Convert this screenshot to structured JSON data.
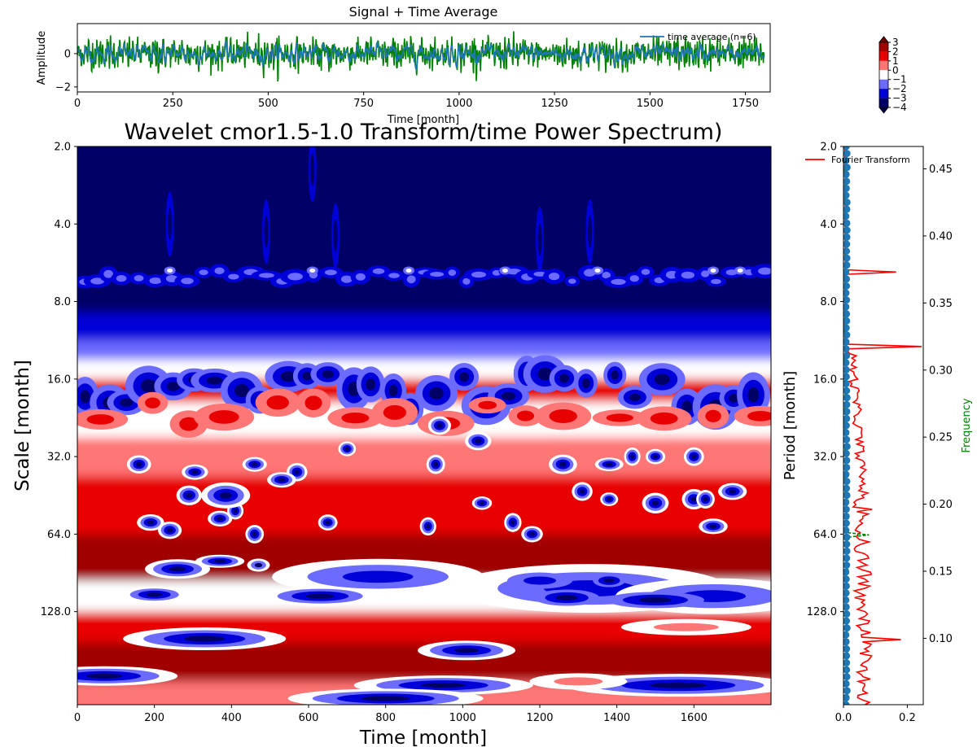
{
  "chart_data": [
    {
      "id": "signal",
      "type": "line",
      "title": "Signal + Time Average",
      "xlabel": "Time [month]",
      "ylabel": "Amplitude",
      "xlim": [
        0,
        1815
      ],
      "ylim": [
        -2.3,
        1.8
      ],
      "xticks": [
        "0",
        "250",
        "500",
        "750",
        "1000",
        "1250",
        "1500",
        "1750"
      ],
      "yticks": [
        "−2",
        "0"
      ],
      "xtick_values": [
        0,
        250,
        500,
        750,
        1000,
        1250,
        1500,
        1750
      ],
      "ytick_values": [
        -2,
        0
      ],
      "legend": {
        "placement": "upper right",
        "entries": [
          "time average (n=6)"
        ]
      },
      "series": [
        {
          "name": "",
          "color": "#008000",
          "style": "solid"
        },
        {
          "name": "time average (n=6)",
          "color": "#1f77b4",
          "style": "solid"
        }
      ],
      "n_points": 1800
    },
    {
      "id": "wavelet",
      "type": "heatmap",
      "title": "Wavelet cmor1.5-1.0 Transform/time Power Spectrum)",
      "xlabel": "Time [month]",
      "ylabel": "Scale [month]",
      "xlim": [
        0,
        1800
      ],
      "ylim_log2": [
        1,
        8.2
      ],
      "xticks": [
        "0",
        "200",
        "400",
        "600",
        "800",
        "1000",
        "1200",
        "1400",
        "1600"
      ],
      "xtick_values": [
        0,
        200,
        400,
        600,
        800,
        1000,
        1200,
        1400,
        1600
      ],
      "yticks": [
        "2.0",
        "4.0",
        "8.0",
        "16.0",
        "32.0",
        "64.0",
        "128.0"
      ],
      "ytick_values": [
        2,
        4,
        8,
        16,
        32,
        64,
        128
      ],
      "colormap": "seismic",
      "levels": [
        -4,
        -3,
        -2,
        -1,
        0,
        1,
        2,
        3
      ]
    },
    {
      "id": "colorbar",
      "type": "colorbar",
      "ticks": [
        "3",
        "2",
        "1",
        "0",
        "−1",
        "−2",
        "−3",
        "−4"
      ],
      "colors": [
        "#000066",
        "#0000d8",
        "#6b6bff",
        "#ffffff",
        "#ff7676",
        "#e80000",
        "#a00000"
      ]
    },
    {
      "id": "fourier",
      "type": "line",
      "ylabel_left": "Period [month]",
      "ylabel_right": "Frequency",
      "xlim": [
        0,
        0.25
      ],
      "xticks": [
        "0.0",
        "0.2"
      ],
      "xtick_values": [
        0.0,
        0.2
      ],
      "yticks_left": [
        "2.0",
        "4.0",
        "8.0",
        "16.0",
        "32.0",
        "64.0",
        "128.0"
      ],
      "ytick_left_values": [
        2,
        4,
        8,
        16,
        32,
        64,
        128
      ],
      "yticks_right": [
        "0.45",
        "0.40",
        "0.35",
        "0.30",
        "0.25",
        "0.20",
        "0.15",
        "0.10"
      ],
      "ytick_right_values": [
        0.45,
        0.4,
        0.35,
        0.3,
        0.25,
        0.2,
        0.15,
        0.1
      ],
      "ylim_right": [
        0.0505,
        0.4667
      ],
      "legend": {
        "placement": "upper left",
        "entries": [
          "Fourier Transform"
        ]
      },
      "series": [
        {
          "name": "Fourier Transform",
          "color": "#ff0000"
        },
        {
          "name": "",
          "color": "#008000",
          "style": "dashed"
        },
        {
          "name": "",
          "color": "#1f77b4",
          "style": "markers"
        }
      ],
      "peaks": [
        {
          "period": 6.1,
          "amplitude": 0.165
        },
        {
          "period": 11.9,
          "amplitude": 0.245
        },
        {
          "period": 60,
          "amplitude": 0.1
        },
        {
          "period": 165,
          "amplitude": 0.18
        }
      ]
    }
  ]
}
